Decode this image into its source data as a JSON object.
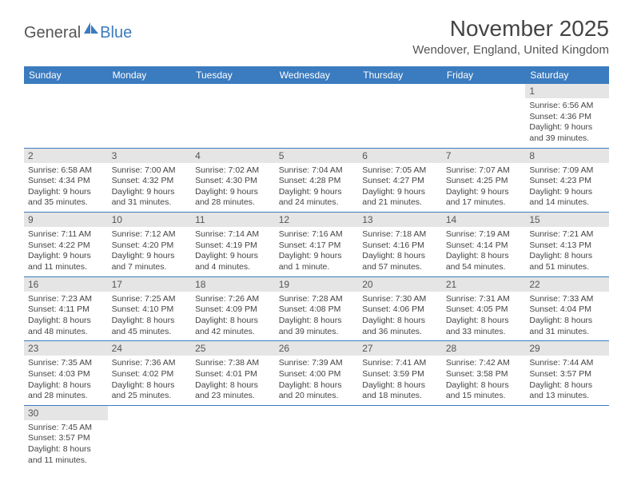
{
  "logo": {
    "text1": "General",
    "text2": "Blue"
  },
  "title": "November 2025",
  "location": "Wendover, England, United Kingdom",
  "colors": {
    "header_bg": "#3b7bbf",
    "header_text": "#ffffff",
    "daynum_bg": "#e5e5e5",
    "border": "#3b7bbf",
    "text": "#444444"
  },
  "weekdays": [
    "Sunday",
    "Monday",
    "Tuesday",
    "Wednesday",
    "Thursday",
    "Friday",
    "Saturday"
  ],
  "weeks": [
    [
      null,
      null,
      null,
      null,
      null,
      null,
      {
        "day": "1",
        "sunrise": "Sunrise: 6:56 AM",
        "sunset": "Sunset: 4:36 PM",
        "dl1": "Daylight: 9 hours",
        "dl2": "and 39 minutes."
      }
    ],
    [
      {
        "day": "2",
        "sunrise": "Sunrise: 6:58 AM",
        "sunset": "Sunset: 4:34 PM",
        "dl1": "Daylight: 9 hours",
        "dl2": "and 35 minutes."
      },
      {
        "day": "3",
        "sunrise": "Sunrise: 7:00 AM",
        "sunset": "Sunset: 4:32 PM",
        "dl1": "Daylight: 9 hours",
        "dl2": "and 31 minutes."
      },
      {
        "day": "4",
        "sunrise": "Sunrise: 7:02 AM",
        "sunset": "Sunset: 4:30 PM",
        "dl1": "Daylight: 9 hours",
        "dl2": "and 28 minutes."
      },
      {
        "day": "5",
        "sunrise": "Sunrise: 7:04 AM",
        "sunset": "Sunset: 4:28 PM",
        "dl1": "Daylight: 9 hours",
        "dl2": "and 24 minutes."
      },
      {
        "day": "6",
        "sunrise": "Sunrise: 7:05 AM",
        "sunset": "Sunset: 4:27 PM",
        "dl1": "Daylight: 9 hours",
        "dl2": "and 21 minutes."
      },
      {
        "day": "7",
        "sunrise": "Sunrise: 7:07 AM",
        "sunset": "Sunset: 4:25 PM",
        "dl1": "Daylight: 9 hours",
        "dl2": "and 17 minutes."
      },
      {
        "day": "8",
        "sunrise": "Sunrise: 7:09 AM",
        "sunset": "Sunset: 4:23 PM",
        "dl1": "Daylight: 9 hours",
        "dl2": "and 14 minutes."
      }
    ],
    [
      {
        "day": "9",
        "sunrise": "Sunrise: 7:11 AM",
        "sunset": "Sunset: 4:22 PM",
        "dl1": "Daylight: 9 hours",
        "dl2": "and 11 minutes."
      },
      {
        "day": "10",
        "sunrise": "Sunrise: 7:12 AM",
        "sunset": "Sunset: 4:20 PM",
        "dl1": "Daylight: 9 hours",
        "dl2": "and 7 minutes."
      },
      {
        "day": "11",
        "sunrise": "Sunrise: 7:14 AM",
        "sunset": "Sunset: 4:19 PM",
        "dl1": "Daylight: 9 hours",
        "dl2": "and 4 minutes."
      },
      {
        "day": "12",
        "sunrise": "Sunrise: 7:16 AM",
        "sunset": "Sunset: 4:17 PM",
        "dl1": "Daylight: 9 hours",
        "dl2": "and 1 minute."
      },
      {
        "day": "13",
        "sunrise": "Sunrise: 7:18 AM",
        "sunset": "Sunset: 4:16 PM",
        "dl1": "Daylight: 8 hours",
        "dl2": "and 57 minutes."
      },
      {
        "day": "14",
        "sunrise": "Sunrise: 7:19 AM",
        "sunset": "Sunset: 4:14 PM",
        "dl1": "Daylight: 8 hours",
        "dl2": "and 54 minutes."
      },
      {
        "day": "15",
        "sunrise": "Sunrise: 7:21 AM",
        "sunset": "Sunset: 4:13 PM",
        "dl1": "Daylight: 8 hours",
        "dl2": "and 51 minutes."
      }
    ],
    [
      {
        "day": "16",
        "sunrise": "Sunrise: 7:23 AM",
        "sunset": "Sunset: 4:11 PM",
        "dl1": "Daylight: 8 hours",
        "dl2": "and 48 minutes."
      },
      {
        "day": "17",
        "sunrise": "Sunrise: 7:25 AM",
        "sunset": "Sunset: 4:10 PM",
        "dl1": "Daylight: 8 hours",
        "dl2": "and 45 minutes."
      },
      {
        "day": "18",
        "sunrise": "Sunrise: 7:26 AM",
        "sunset": "Sunset: 4:09 PM",
        "dl1": "Daylight: 8 hours",
        "dl2": "and 42 minutes."
      },
      {
        "day": "19",
        "sunrise": "Sunrise: 7:28 AM",
        "sunset": "Sunset: 4:08 PM",
        "dl1": "Daylight: 8 hours",
        "dl2": "and 39 minutes."
      },
      {
        "day": "20",
        "sunrise": "Sunrise: 7:30 AM",
        "sunset": "Sunset: 4:06 PM",
        "dl1": "Daylight: 8 hours",
        "dl2": "and 36 minutes."
      },
      {
        "day": "21",
        "sunrise": "Sunrise: 7:31 AM",
        "sunset": "Sunset: 4:05 PM",
        "dl1": "Daylight: 8 hours",
        "dl2": "and 33 minutes."
      },
      {
        "day": "22",
        "sunrise": "Sunrise: 7:33 AM",
        "sunset": "Sunset: 4:04 PM",
        "dl1": "Daylight: 8 hours",
        "dl2": "and 31 minutes."
      }
    ],
    [
      {
        "day": "23",
        "sunrise": "Sunrise: 7:35 AM",
        "sunset": "Sunset: 4:03 PM",
        "dl1": "Daylight: 8 hours",
        "dl2": "and 28 minutes."
      },
      {
        "day": "24",
        "sunrise": "Sunrise: 7:36 AM",
        "sunset": "Sunset: 4:02 PM",
        "dl1": "Daylight: 8 hours",
        "dl2": "and 25 minutes."
      },
      {
        "day": "25",
        "sunrise": "Sunrise: 7:38 AM",
        "sunset": "Sunset: 4:01 PM",
        "dl1": "Daylight: 8 hours",
        "dl2": "and 23 minutes."
      },
      {
        "day": "26",
        "sunrise": "Sunrise: 7:39 AM",
        "sunset": "Sunset: 4:00 PM",
        "dl1": "Daylight: 8 hours",
        "dl2": "and 20 minutes."
      },
      {
        "day": "27",
        "sunrise": "Sunrise: 7:41 AM",
        "sunset": "Sunset: 3:59 PM",
        "dl1": "Daylight: 8 hours",
        "dl2": "and 18 minutes."
      },
      {
        "day": "28",
        "sunrise": "Sunrise: 7:42 AM",
        "sunset": "Sunset: 3:58 PM",
        "dl1": "Daylight: 8 hours",
        "dl2": "and 15 minutes."
      },
      {
        "day": "29",
        "sunrise": "Sunrise: 7:44 AM",
        "sunset": "Sunset: 3:57 PM",
        "dl1": "Daylight: 8 hours",
        "dl2": "and 13 minutes."
      }
    ],
    [
      {
        "day": "30",
        "sunrise": "Sunrise: 7:45 AM",
        "sunset": "Sunset: 3:57 PM",
        "dl1": "Daylight: 8 hours",
        "dl2": "and 11 minutes."
      },
      null,
      null,
      null,
      null,
      null,
      null
    ]
  ]
}
